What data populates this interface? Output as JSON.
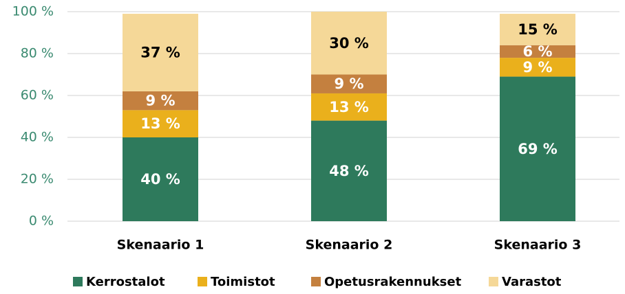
{
  "chart_data": {
    "type": "stacked_bar",
    "categories": [
      "Skenaario 1",
      "Skenaario 2",
      "Skenaario 3"
    ],
    "series": [
      {
        "name": "Kerrostalot",
        "color": "#2e7a5c",
        "label_color": "#ffffff",
        "values": [
          40,
          48,
          69
        ],
        "value_labels": [
          "40 %",
          "48 %",
          "69 %"
        ]
      },
      {
        "name": "Toimistot",
        "color": "#eab01c",
        "label_color": "#ffffff",
        "values": [
          13,
          13,
          9
        ],
        "value_labels": [
          "13 %",
          "13 %",
          "9 %"
        ]
      },
      {
        "name": "Opetusrakennukset",
        "color": "#c4803f",
        "label_color": "#ffffff",
        "values": [
          9,
          9,
          6
        ],
        "value_labels": [
          "9 %",
          "9 %",
          "6 %"
        ]
      },
      {
        "name": "Varastot",
        "color": "#f5d898",
        "label_color": "#000000",
        "values": [
          37,
          30,
          15
        ],
        "value_labels": [
          "37 %",
          "30 %",
          "15 %"
        ]
      }
    ],
    "ylim": [
      0,
      100
    ],
    "yticks": [
      {
        "value": 0,
        "label": "0 %"
      },
      {
        "value": 20,
        "label": "20 %"
      },
      {
        "value": 40,
        "label": "40 %"
      },
      {
        "value": 60,
        "label": "60 %"
      },
      {
        "value": 80,
        "label": "80 %"
      },
      {
        "value": 100,
        "label": "100 %"
      }
    ],
    "grid": true,
    "legend": "bottom"
  }
}
